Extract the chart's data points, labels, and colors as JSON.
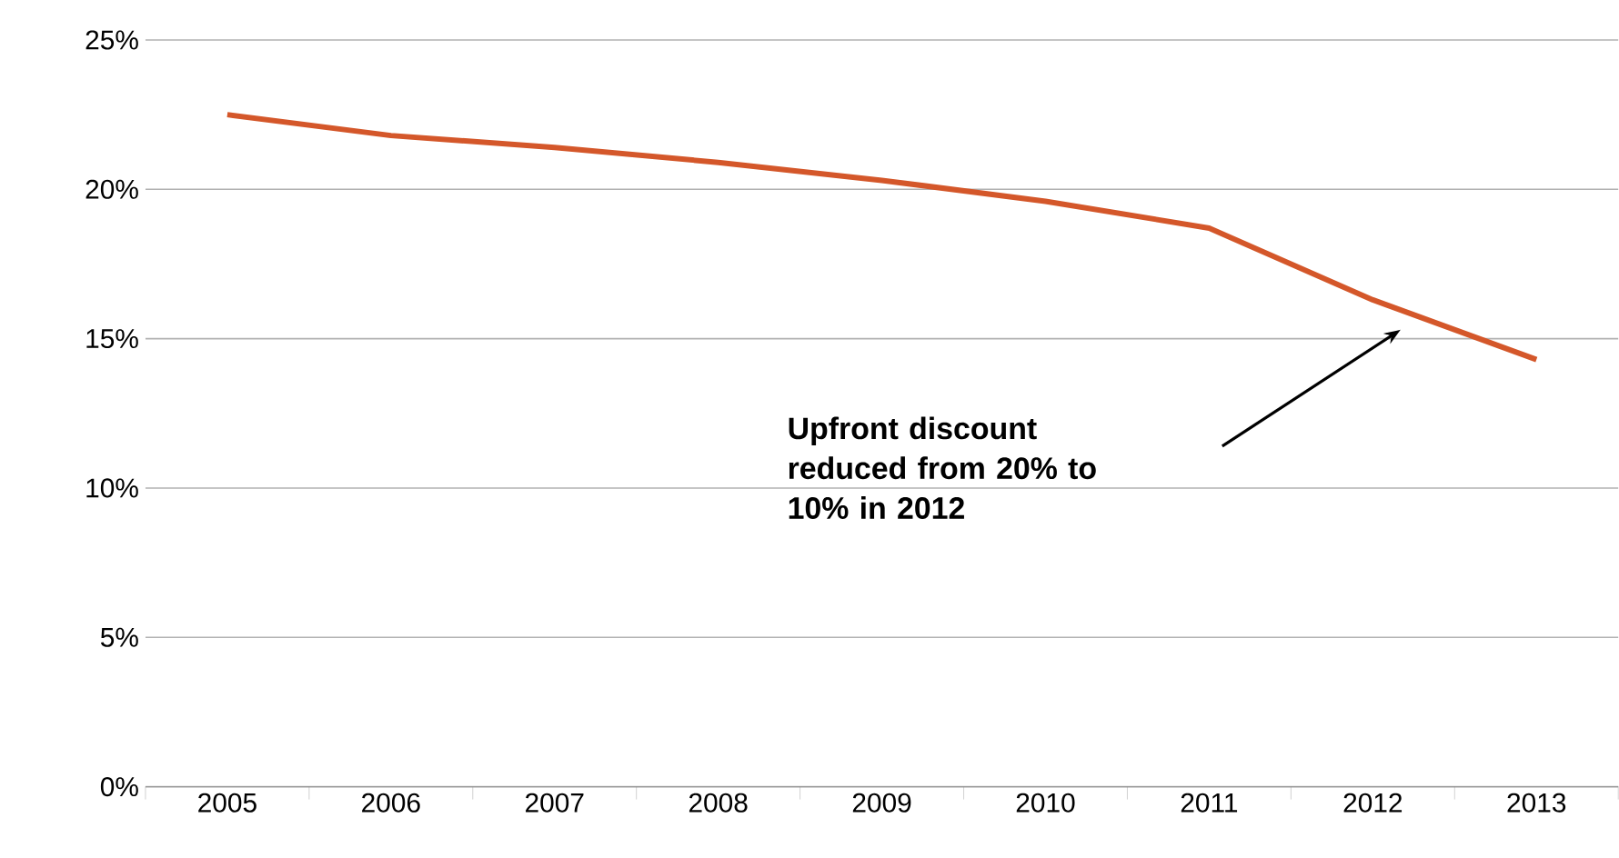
{
  "chart_data": {
    "type": "line",
    "categories": [
      "2005",
      "2006",
      "2007",
      "2008",
      "2009",
      "2010",
      "2011",
      "2012",
      "2013"
    ],
    "series": [
      {
        "color": "#d4572a",
        "values": [
          22.5,
          21.8,
          21.4,
          20.9,
          20.3,
          19.6,
          18.7,
          16.3,
          14.3
        ]
      }
    ],
    "ylim": [
      0,
      25
    ],
    "yticks": [
      {
        "value": 0,
        "label": "0%"
      },
      {
        "value": 5,
        "label": "5%"
      },
      {
        "value": 10,
        "label": "10%"
      },
      {
        "value": 15,
        "label": "15%"
      },
      {
        "value": 20,
        "label": "20%"
      },
      {
        "value": 25,
        "label": "25%"
      }
    ],
    "grid": "y",
    "marker": "none",
    "line_style": "solid",
    "annotations": [
      "**Upfront discount reduced from 20% to 10% in 2012**"
    ]
  }
}
